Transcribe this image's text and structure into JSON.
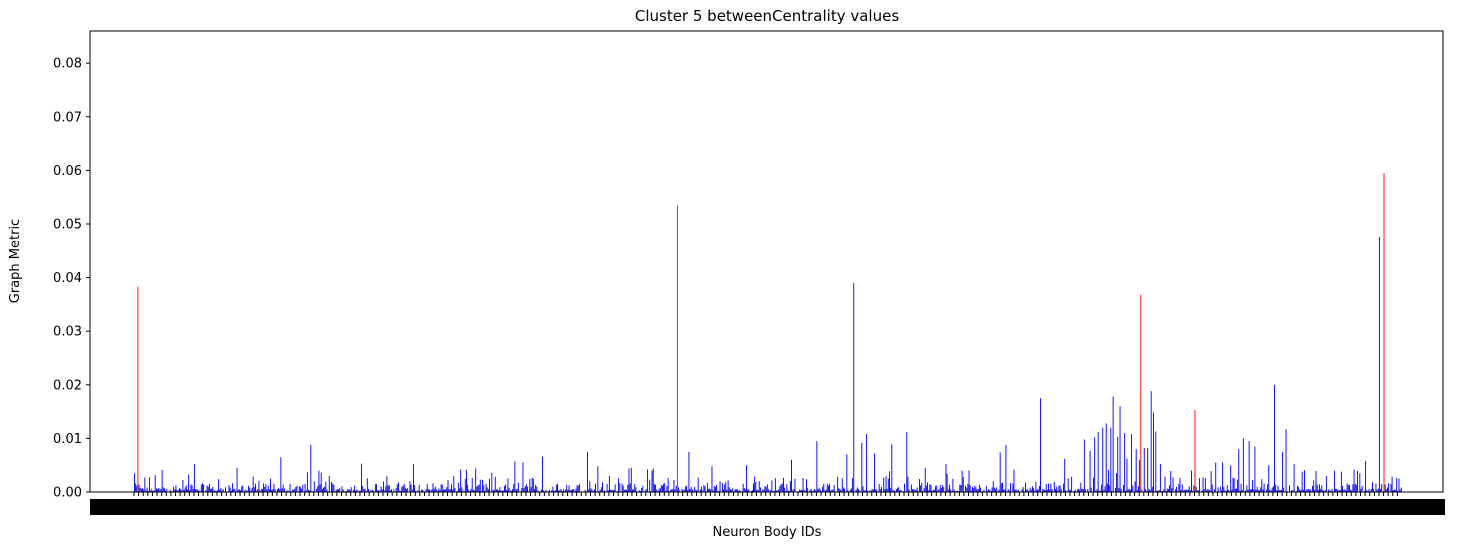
{
  "chart_data": {
    "type": "bar",
    "title": "Cluster 5 betweenCentrality values",
    "xlabel": "Neuron Body IDs",
    "ylabel": "Graph Metric",
    "ylim": [
      0,
      0.086
    ],
    "yticks": [
      "0.00",
      "0.01",
      "0.02",
      "0.03",
      "0.04",
      "0.05",
      "0.06",
      "0.07",
      "0.08"
    ],
    "bar_count": 1100,
    "series": [
      {
        "color": "#0000ff",
        "points": [
          [
            0,
            0.0035
          ],
          [
            28,
            0.0041
          ],
          [
            60,
            0.0052
          ],
          [
            104,
            0.0045
          ],
          [
            148,
            0.0065
          ],
          [
            178,
            0.0088
          ],
          [
            230,
            0.0053
          ],
          [
            282,
            0.0052
          ],
          [
            330,
            0.0042
          ],
          [
            335,
            0.0041
          ],
          [
            384,
            0.0057
          ],
          [
            392,
            0.0055
          ],
          [
            412,
            0.0066
          ],
          [
            468,
            0.0048
          ],
          [
            458,
            0.0075
          ],
          [
            502,
            0.0045
          ],
          [
            500,
            0.0044
          ],
          [
            518,
            0.0042
          ],
          [
            560,
            0.0075
          ],
          [
            584,
            0.0048
          ],
          [
            618,
            0.005
          ],
          [
            664,
            0.006
          ],
          [
            690,
            0.0095
          ],
          [
            720,
            0.007
          ],
          [
            727,
            0.039
          ],
          [
            735,
            0.0092
          ],
          [
            740,
            0.0108
          ],
          [
            748,
            0.0072
          ],
          [
            765,
            0.0089
          ],
          [
            780,
            0.0112
          ],
          [
            799,
            0.0045
          ],
          [
            820,
            0.0052
          ],
          [
            836,
            0.004
          ],
          [
            875,
            0.0074
          ],
          [
            881,
            0.0088
          ],
          [
            916,
            0.0175
          ],
          [
            940,
            0.0062
          ],
          [
            960,
            0.0098
          ],
          [
            966,
            0.0077
          ],
          [
            970,
            0.0102
          ],
          [
            974,
            0.0112
          ],
          [
            978,
            0.012
          ],
          [
            982,
            0.0128
          ],
          [
            986,
            0.012
          ],
          [
            989,
            0.0178
          ],
          [
            993,
            0.0103
          ],
          [
            996,
            0.016
          ],
          [
            1000,
            0.011
          ],
          [
            1003,
            0.0062
          ],
          [
            1008,
            0.0108
          ],
          [
            1012,
            0.008
          ],
          [
            1016,
            0.006
          ],
          [
            1020,
            0.0082
          ],
          [
            1024,
            0.0082
          ],
          [
            1027,
            0.0188
          ],
          [
            1030,
            0.0148
          ],
          [
            1032,
            0.0113
          ],
          [
            1036,
            0.0052
          ],
          [
            1068,
            0.004
          ],
          [
            1092,
            0.0055
          ],
          [
            1100,
            0.0055
          ],
          [
            1108,
            0.005
          ],
          [
            1116,
            0.008
          ],
          [
            1120,
            0.01
          ],
          [
            1126,
            0.0095
          ],
          [
            1132,
            0.0085
          ],
          [
            1146,
            0.005
          ],
          [
            1152,
            0.02
          ],
          [
            1160,
            0.0075
          ],
          [
            1164,
            0.0117
          ],
          [
            1172,
            0.0052
          ],
          [
            1180,
            0.0038
          ],
          [
            1204,
            0.003
          ],
          [
            1212,
            0.004
          ],
          [
            1220,
            0.0038
          ],
          [
            1232,
            0.0042
          ],
          [
            1238,
            0.0035
          ],
          [
            1244,
            0.0058
          ],
          [
            1258,
            0.0476
          ],
          [
            1262,
            0.0078
          ],
          [
            1270,
            0.0015
          ],
          [
            1278,
            0.0025
          ]
        ]
      },
      {
        "color": "#ff0000",
        "points": [
          [
            4,
            0.0383
          ],
          [
            548,
            0.0535
          ],
          [
            1017,
            0.0368
          ],
          [
            1071,
            0.0153
          ],
          [
            1263,
            0.0595
          ]
        ]
      }
    ],
    "grid": false
  }
}
